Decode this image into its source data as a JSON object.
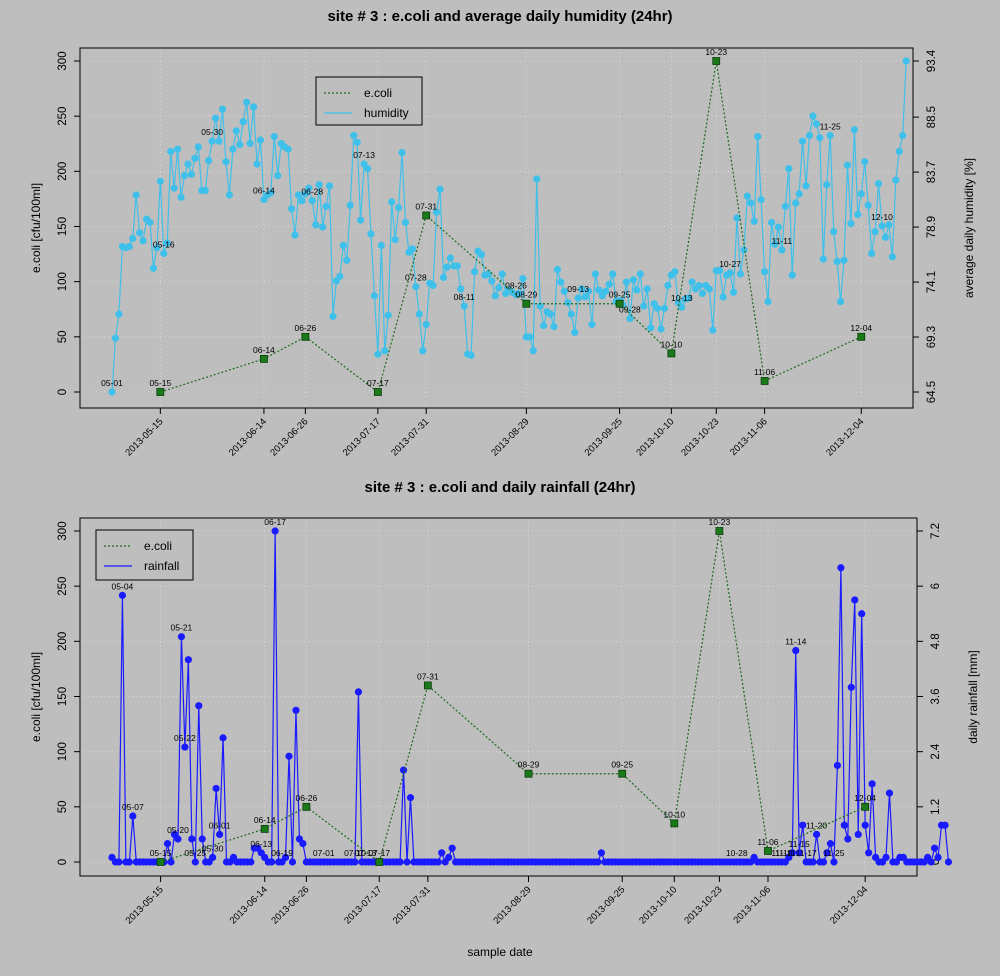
{
  "chart_data": [
    {
      "type": "line",
      "title": "site # 3 : e.coli and average daily humidity (24hr)",
      "ylabel": "e.coli [cfu/100ml]",
      "y2label": "average daily humidity [%]",
      "xlabel": "",
      "x_ticks": [
        "2013-05-15",
        "2013-06-14",
        "2013-06-26",
        "2013-07-17",
        "2013-07-31",
        "2013-08-29",
        "2013-09-25",
        "2013-10-10",
        "2013-10-23",
        "2013-11-06",
        "2013-12-04"
      ],
      "x_range": [
        "2013-05-01",
        "2013-12-10"
      ],
      "ylim": [
        0,
        300
      ],
      "y_ticks": [
        0,
        50,
        100,
        150,
        200,
        250,
        300
      ],
      "y2lim": [
        64.5,
        93.4
      ],
      "y2_ticks": [
        64.5,
        69.3,
        74.1,
        78.9,
        83.7,
        88.5,
        93.4
      ],
      "grid": true,
      "legend": {
        "position": "top-center",
        "entries": [
          "e.coli",
          "humidity"
        ]
      },
      "series": [
        {
          "name": "e.coli",
          "axis": "left",
          "color": "#1e6b1e",
          "style": "dotted",
          "points": [
            {
              "x": "2013-05-15",
              "y": 0,
              "label": "05-15"
            },
            {
              "x": "2013-06-14",
              "y": 30,
              "label": "06-14"
            },
            {
              "x": "2013-06-26",
              "y": 50,
              "label": "06-26"
            },
            {
              "x": "2013-07-17",
              "y": 0,
              "label": "07-17"
            },
            {
              "x": "2013-07-31",
              "y": 160,
              "label": "07-31"
            },
            {
              "x": "2013-08-29",
              "y": 80,
              "label": "08-29"
            },
            {
              "x": "2013-09-25",
              "y": 80,
              "label": "09-25"
            },
            {
              "x": "2013-10-10",
              "y": 35,
              "label": "10-10"
            },
            {
              "x": "2013-10-23",
              "y": 300,
              "label": "10-23"
            },
            {
              "x": "2013-11-06",
              "y": 10,
              "label": "11-06"
            },
            {
              "x": "2013-12-04",
              "y": 50,
              "label": "12-04"
            }
          ]
        },
        {
          "name": "humidity",
          "axis": "right",
          "color": "#3fc0ea",
          "style": "solid",
          "start": "2013-05-01",
          "values": [
            64.5,
            69.2,
            71.3,
            77.2,
            77.1,
            77.2,
            77.9,
            81.7,
            78.4,
            77.7,
            79.6,
            79.3,
            75.3,
            77.1,
            82.9,
            76.6,
            77.5,
            85.5,
            82.3,
            85.7,
            81.5,
            83.4,
            84.4,
            83.5,
            84.9,
            85.9,
            82.1,
            82.1,
            84.7,
            86.4,
            88.4,
            86.4,
            89.2,
            84.6,
            81.7,
            85.7,
            87.3,
            86.1,
            88.1,
            89.8,
            86.2,
            89.4,
            84.4,
            86.5,
            81.3,
            81.7,
            81.9,
            86.8,
            83.4,
            86.2,
            85.9,
            85.7,
            80.5,
            78.2,
            81.7,
            81.2,
            81.8,
            82.3,
            81.2,
            79.1,
            82.6,
            78.9,
            80.7,
            82.5,
            71.1,
            74.2,
            74.6,
            77.3,
            76.0,
            80.8,
            86.9,
            86.3,
            79.5,
            84.4,
            84.0,
            78.3,
            72.9,
            67.8,
            77.3,
            68.1,
            71.2,
            81.1,
            77.8,
            80.6,
            85.4,
            79.3,
            76.7,
            77.0,
            73.7,
            71.3,
            68.1,
            70.4,
            74.0,
            73.8,
            80.2,
            82.2,
            74.5,
            75.4,
            76.2,
            75.5,
            75.5,
            73.5,
            72.0,
            67.8,
            67.7,
            75.0,
            76.8,
            76.5,
            74.7,
            74.8,
            74.2,
            72.9,
            73.6,
            74.8,
            73.1,
            73.4,
            73.2,
            73.0,
            73.1,
            74.4,
            69.3,
            69.3,
            68.1,
            83.1,
            72.0,
            70.3,
            71.5,
            71.3,
            70.2,
            75.2,
            74.1,
            73.3,
            72.3,
            71.3,
            69.7,
            72.7,
            73.5,
            72.8,
            73.3,
            70.4,
            74.8,
            73.4,
            72.9,
            73.3,
            73.9,
            74.8,
            72.4,
            72.5,
            72.1,
            74.1,
            70.9,
            74.3,
            73.4,
            74.8,
            72.0,
            73.5,
            70.1,
            72.2,
            71.8,
            70.0,
            71.8,
            73.8,
            74.7,
            75.0,
            72.3,
            71.9,
            72.6,
            72.7,
            74.1,
            73.5,
            73.8,
            73.1,
            73.8,
            73.5,
            69.9,
            75.1,
            75.1,
            72.8,
            74.7,
            74.9,
            73.2,
            79.7,
            74.8,
            76.9,
            81.6,
            81.0,
            79.4,
            86.8,
            81.3,
            75.0,
            72.4,
            79.3,
            77.4,
            78.9,
            76.9,
            80.7,
            84.0,
            74.7,
            81.0,
            81.8,
            86.4,
            82.5,
            86.9,
            88.6,
            87.9,
            86.7,
            76.1,
            82.6,
            86.9,
            78.5,
            75.9,
            72.4,
            76.0,
            84.3,
            79.2,
            87.4,
            80.0,
            81.8,
            84.6,
            80.8,
            76.6,
            78.5,
            82.7,
            79.0,
            78.0,
            79.1,
            76.3,
            83.0,
            85.5,
            86.9,
            93.4
          ],
          "labels": [
            {
              "x": "2013-05-01",
              "text": "05-01"
            },
            {
              "x": "2013-05-16",
              "text": "05-16"
            },
            {
              "x": "2013-05-30",
              "text": "05-30"
            },
            {
              "x": "2013-06-14",
              "text": "06-14"
            },
            {
              "x": "2013-06-28",
              "text": "06-28"
            },
            {
              "x": "2013-07-13",
              "text": "07-13"
            },
            {
              "x": "2013-07-28",
              "text": "07-28"
            },
            {
              "x": "2013-08-11",
              "text": "08-11"
            },
            {
              "x": "2013-08-26",
              "text": "08-26"
            },
            {
              "x": "2013-09-13",
              "text": "09-13"
            },
            {
              "x": "2013-09-28",
              "text": "09-28"
            },
            {
              "x": "2013-10-13",
              "text": "10-13"
            },
            {
              "x": "2013-10-27",
              "text": "10-27"
            },
            {
              "x": "2013-11-11",
              "text": "11-11"
            },
            {
              "x": "2013-11-25",
              "text": "11-25"
            },
            {
              "x": "2013-12-10",
              "text": "12-10"
            }
          ]
        }
      ]
    },
    {
      "type": "line",
      "title": "site # 3 : e.coli and daily rainfall (24hr)",
      "ylabel": "e.coli [cfu/100ml]",
      "y2label": "daily rainfall [mm]",
      "xlabel": "sample date",
      "x_ticks": [
        "2013-05-15",
        "2013-06-14",
        "2013-06-26",
        "2013-07-17",
        "2013-07-31",
        "2013-08-29",
        "2013-09-25",
        "2013-10-10",
        "2013-10-23",
        "2013-11-06",
        "2013-12-04"
      ],
      "x_range": [
        "2013-05-01",
        "2013-12-10"
      ],
      "ylim": [
        0,
        300
      ],
      "y_ticks": [
        0,
        50,
        100,
        150,
        200,
        250,
        300
      ],
      "y2lim": [
        0,
        7.2
      ],
      "y2_ticks": [
        0,
        1.2,
        2.4,
        3.6,
        4.8,
        6,
        7.2
      ],
      "grid": true,
      "legend": {
        "position": "top-left",
        "entries": [
          "e.coli",
          "rainfall"
        ]
      },
      "series": [
        {
          "name": "e.coli",
          "axis": "left",
          "color": "#1e6b1e",
          "style": "dotted",
          "points": [
            {
              "x": "2013-05-15",
              "y": 0,
              "label": "05-15"
            },
            {
              "x": "2013-06-14",
              "y": 30,
              "label": "06-14"
            },
            {
              "x": "2013-06-26",
              "y": 50,
              "label": "06-26"
            },
            {
              "x": "2013-07-17",
              "y": 0,
              "label": "07-17"
            },
            {
              "x": "2013-07-31",
              "y": 160,
              "label": "07-31"
            },
            {
              "x": "2013-08-29",
              "y": 80,
              "label": "08-29"
            },
            {
              "x": "2013-09-25",
              "y": 80,
              "label": "09-25"
            },
            {
              "x": "2013-10-10",
              "y": 35,
              "label": "10-10"
            },
            {
              "x": "2013-10-23",
              "y": 300,
              "label": "10-23"
            },
            {
              "x": "2013-11-06",
              "y": 10,
              "label": "11-06"
            },
            {
              "x": "2013-12-04",
              "y": 50,
              "label": "12-04"
            }
          ]
        },
        {
          "name": "rainfall",
          "axis": "right",
          "color": "#1a1aff",
          "style": "solid",
          "start": "2013-05-01",
          "values": [
            0.1,
            0,
            0,
            5.8,
            0,
            0,
            1.0,
            0,
            0,
            0,
            0,
            0,
            0,
            0,
            0,
            0,
            0.4,
            0,
            0.6,
            0.5,
            4.9,
            2.5,
            4.4,
            0.5,
            0,
            3.4,
            0.5,
            0,
            0,
            0.1,
            1.6,
            0.6,
            2.7,
            0,
            0,
            0.1,
            0,
            0,
            0,
            0,
            0,
            0.3,
            0.3,
            0.2,
            0.1,
            0,
            0,
            7.2,
            0,
            0,
            0.1,
            2.3,
            0,
            3.3,
            0.5,
            0.4,
            0,
            0,
            0,
            0,
            0,
            0,
            0,
            0,
            0,
            0,
            0,
            0,
            0,
            0,
            0,
            3.7,
            0,
            0,
            0,
            0,
            0,
            0,
            0,
            0,
            0,
            0,
            0,
            0,
            2.0,
            0,
            1.4,
            0,
            0,
            0,
            0,
            0,
            0,
            0,
            0,
            0.2,
            0,
            0.1,
            0.3,
            0,
            0,
            0,
            0,
            0,
            0,
            0,
            0,
            0,
            0,
            0,
            0,
            0,
            0,
            0,
            0,
            0,
            0,
            0,
            0,
            0,
            0,
            0,
            0,
            0,
            0,
            0,
            0,
            0,
            0,
            0,
            0,
            0,
            0,
            0,
            0,
            0,
            0,
            0,
            0,
            0,
            0,
            0.2,
            0,
            0,
            0,
            0,
            0,
            0,
            0,
            0,
            0,
            0,
            0,
            0,
            0,
            0,
            0,
            0,
            0,
            0,
            0,
            0,
            0,
            0,
            0,
            0,
            0,
            0,
            0,
            0,
            0,
            0,
            0,
            0,
            0,
            0,
            0,
            0,
            0,
            0,
            0,
            0,
            0,
            0,
            0,
            0.1,
            0,
            0,
            0,
            0,
            0,
            0,
            0,
            0,
            0,
            0.1,
            0.2,
            4.6,
            0.2,
            0.8,
            0,
            0,
            0,
            0.6,
            0,
            0,
            0.2,
            0.4,
            0,
            2.1,
            6.4,
            0.8,
            0.5,
            3.8,
            5.7,
            0.6,
            5.4,
            0.8,
            0.2,
            1.7,
            0.1,
            0,
            0,
            0.1,
            1.5,
            0,
            0,
            0.1,
            0.1,
            0,
            0,
            0,
            0,
            0,
            0,
            0.1,
            0,
            0.3,
            0.1,
            0.8,
            0.8,
            0
          ],
          "labels": [
            {
              "x": "2013-05-04",
              "text": "05-04"
            },
            {
              "x": "2013-05-07",
              "text": "05-07"
            },
            {
              "x": "2013-05-20",
              "text": "05-20"
            },
            {
              "x": "2013-05-21",
              "text": "05-21"
            },
            {
              "x": "2013-05-22",
              "text": "05-22"
            },
            {
              "x": "2013-05-25",
              "text": "05-25"
            },
            {
              "x": "2013-05-30",
              "text": "05-30"
            },
            {
              "x": "2013-06-01",
              "text": "06-01"
            },
            {
              "x": "2013-06-13",
              "text": "06-13"
            },
            {
              "x": "2013-06-17",
              "text": "06-17"
            },
            {
              "x": "2013-06-19",
              "text": "06-19"
            },
            {
              "x": "2013-07-01",
              "text": "07-01"
            },
            {
              "x": "2013-07-10",
              "text": "07-10"
            },
            {
              "x": "2013-07-13",
              "text": "07-13"
            },
            {
              "x": "2013-10-28",
              "text": "10-28"
            },
            {
              "x": "2013-11-10",
              "text": "11-10"
            },
            {
              "x": "2013-11-11",
              "text": "11-11"
            },
            {
              "x": "2013-11-14",
              "text": "11-14"
            },
            {
              "x": "2013-11-15",
              "text": "11-15"
            },
            {
              "x": "2013-11-17",
              "text": "11-17"
            },
            {
              "x": "2013-11-20",
              "text": "11-20"
            },
            {
              "x": "2013-11-25",
              "text": "11-25"
            }
          ]
        }
      ]
    }
  ]
}
